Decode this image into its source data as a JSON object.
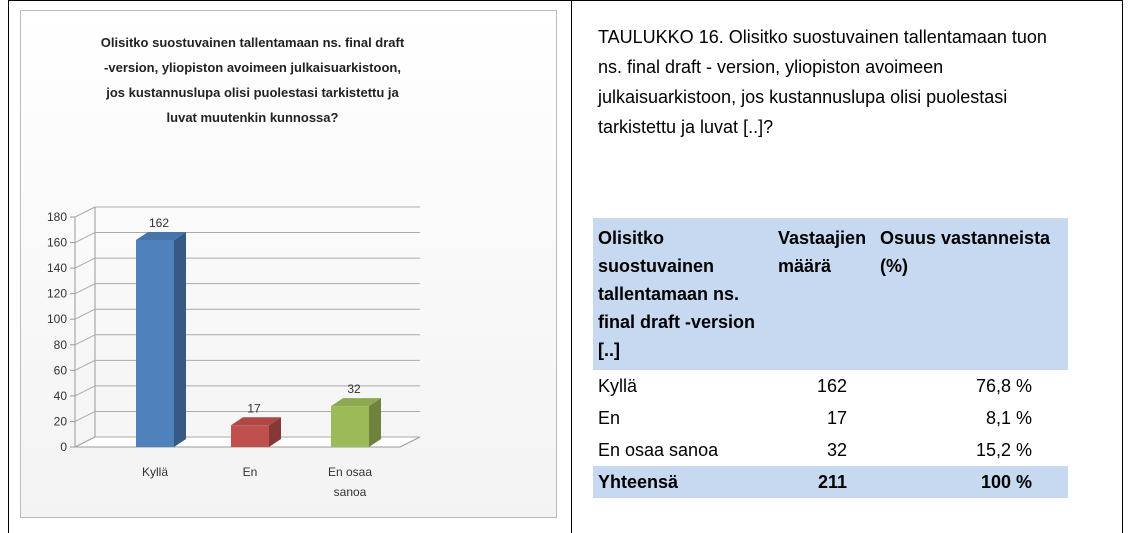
{
  "chart_data": {
    "type": "bar3d",
    "title": "Olisitko suostuvainen tallentamaan ns. final draft -version, yliopiston avoimeen julkaisuarkistoon, jos kustannuslupa olisi puolestasi tarkistettu ja luvat muutenkin kunnossa?",
    "categories": [
      "Kyllä",
      "En",
      "En osaa sanoa"
    ],
    "values": [
      162,
      17,
      32
    ],
    "colors": [
      "#4f81bd",
      "#c0504d",
      "#9bbb59"
    ],
    "ylim": [
      0,
      180
    ],
    "yticks": [
      0,
      20,
      40,
      60,
      80,
      100,
      120,
      140,
      160,
      180
    ],
    "grid": true
  },
  "caption": "TAULUKKO 16. Olisitko suostuvainen tallentamaan tuon ns. final draft - version, yliopiston avoimeen julkaisuarkistoon, jos kustannuslupa olisi puolestasi tarkistettu ja luvat [..]?",
  "table": {
    "header": [
      "Olisitko suostuvainen tallentamaan ns. final draft -version [..]",
      "Vastaajien määrä",
      "Osuus vastanneista (%)"
    ],
    "rows": [
      [
        "Kyllä",
        "162",
        "76,8 %"
      ],
      [
        "En",
        "17",
        "8,1 %"
      ],
      [
        "En osaa sanoa",
        "32",
        "15,2 %"
      ]
    ],
    "total": [
      "Yhteensä",
      "211",
      "100 %"
    ]
  }
}
